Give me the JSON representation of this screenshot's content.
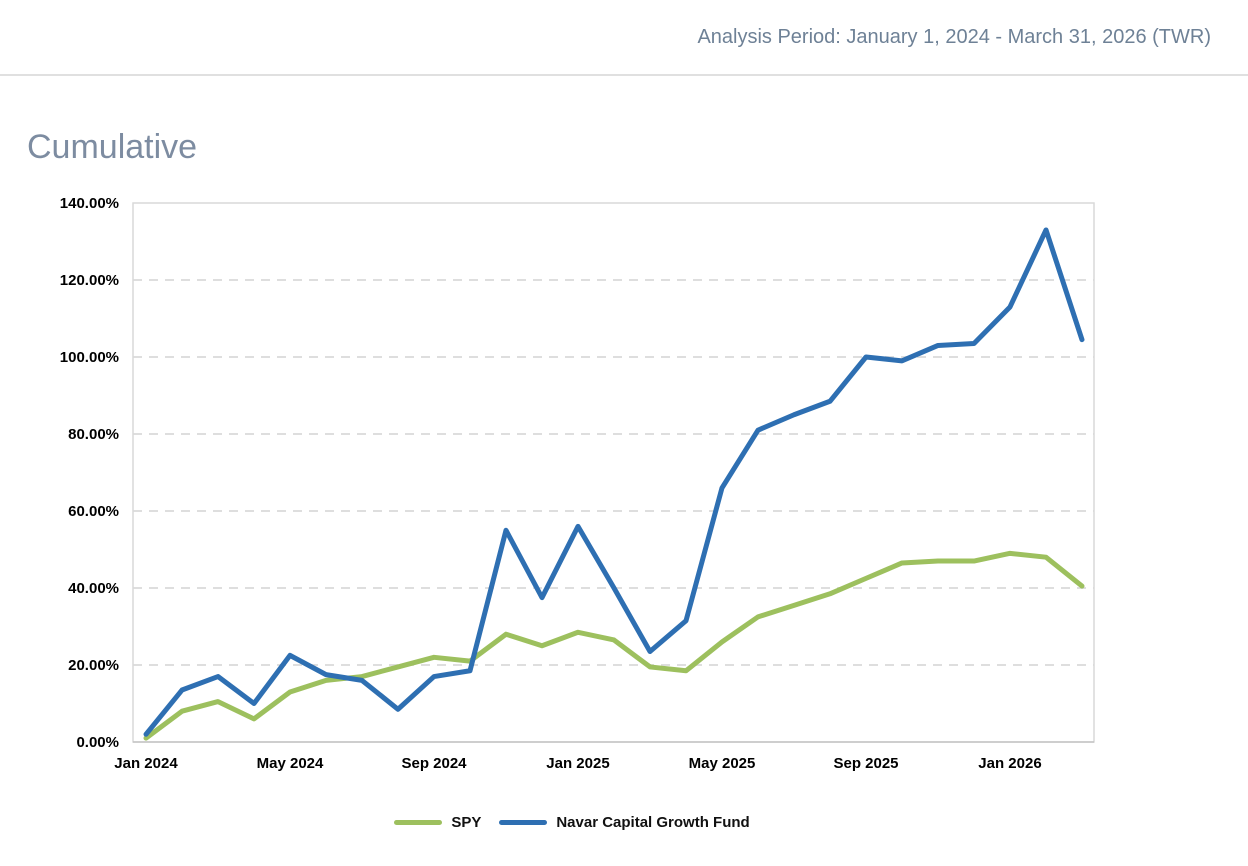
{
  "header": {
    "analysis_period": "Analysis Period: January 1, 2024 - March 31, 2026 (TWR)"
  },
  "title": "Cumulative",
  "colors": {
    "spy_line": "#9dc05e",
    "fund_line": "#2e6fb2",
    "grid_line": "#dedede",
    "plot_border": "#d9d9d9",
    "axis_line": "#c4c4c4",
    "tick_text": "#000000",
    "title_text": "#7d8ca1",
    "header_text": "#6e8196"
  },
  "legend": {
    "items": [
      {
        "label": "SPY",
        "color": "#9dc05e"
      },
      {
        "label": "Navar Capital Growth Fund",
        "color": "#2e6fb2"
      }
    ]
  },
  "chart_data": {
    "type": "line",
    "title": "Cumulative",
    "x": [
      "Jan 2024",
      "Feb 2024",
      "Mar 2024",
      "Apr 2024",
      "May 2024",
      "Jun 2024",
      "Jul 2024",
      "Aug 2024",
      "Sep 2024",
      "Oct 2024",
      "Nov 2024",
      "Dec 2024",
      "Jan 2025",
      "Feb 2025",
      "Mar 2025",
      "Apr 2025",
      "May 2025",
      "Jun 2025",
      "Jul 2025",
      "Aug 2025",
      "Sep 2025",
      "Oct 2025",
      "Nov 2025",
      "Dec 2025",
      "Jan 2026",
      "Feb 2026",
      "Mar 2026"
    ],
    "series": [
      {
        "name": "SPY",
        "color": "#9dc05e",
        "values": [
          1,
          8,
          10.5,
          6,
          13,
          16,
          17,
          19.5,
          22,
          21,
          28,
          25,
          28.5,
          26.5,
          19.5,
          18.5,
          26,
          32.5,
          35.5,
          38.5,
          42.5,
          46.5,
          47,
          47,
          49,
          48,
          40.5
        ]
      },
      {
        "name": "Navar Capital Growth Fund",
        "color": "#2e6fb2",
        "values": [
          2,
          13.5,
          17,
          10,
          22.5,
          17.5,
          16,
          8.5,
          17,
          18.5,
          55,
          37.5,
          56,
          40,
          23.5,
          31.5,
          66,
          81,
          85,
          88.5,
          100,
          99,
          103,
          103.5,
          113,
          133,
          104.5
        ]
      }
    ],
    "ylim": [
      0,
      140
    ],
    "y_ticks": [
      "0.00%",
      "20.00%",
      "40.00%",
      "60.00%",
      "80.00%",
      "100.00%",
      "120.00%",
      "140.00%"
    ],
    "x_ticks": [
      {
        "index": 0,
        "label": "Jan 2024"
      },
      {
        "index": 4,
        "label": "May 2024"
      },
      {
        "index": 8,
        "label": "Sep 2024"
      },
      {
        "index": 12,
        "label": "Jan 2025"
      },
      {
        "index": 16,
        "label": "May 2025"
      },
      {
        "index": 20,
        "label": "Sep 2025"
      },
      {
        "index": 24,
        "label": "Jan 2026"
      }
    ],
    "grid": "horizontal-dashed",
    "legend_position": "bottom",
    "xlabel": "",
    "ylabel": ""
  }
}
